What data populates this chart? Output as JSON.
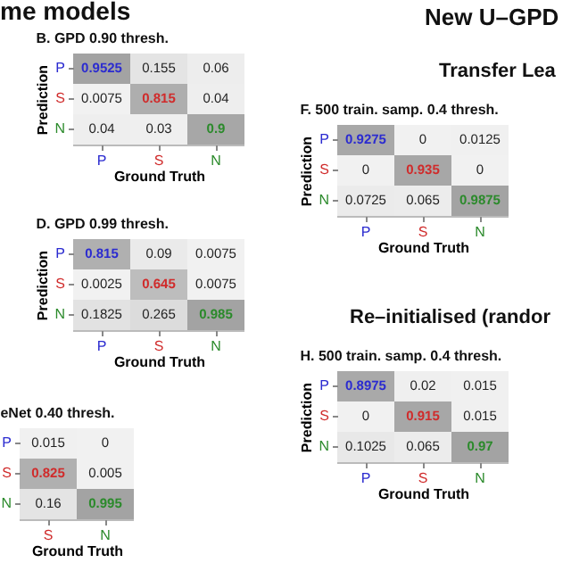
{
  "chart_data": [
    {
      "type": "heatmap",
      "data_labels": true,
      "title": "B. GPD 0.90 thresh.",
      "annotations": [
        "me models"
      ],
      "xlabel": "Ground Truth",
      "ylabel": "Prediction",
      "categories": [
        "P",
        "S",
        "N"
      ],
      "y_categories": [
        "P",
        "S",
        "N"
      ],
      "cells": [
        [
          0.9525,
          0.155,
          0.06
        ],
        [
          0.0075,
          0.815,
          0.04
        ],
        [
          0.04,
          0.03,
          0.9
        ]
      ]
    },
    {
      "type": "heatmap",
      "data_labels": true,
      "title": "D. GPD 0.99 thresh.",
      "xlabel": "Ground Truth",
      "ylabel": "Prediction",
      "categories": [
        "P",
        "S",
        "N"
      ],
      "y_categories": [
        "P",
        "S",
        "N"
      ],
      "cells": [
        [
          0.815,
          0.09,
          0.0075
        ],
        [
          0.0025,
          0.645,
          0.0075
        ],
        [
          0.1825,
          0.265,
          0.985
        ]
      ]
    },
    {
      "type": "heatmap",
      "data_labels": true,
      "title": "eNet 0.40 thresh.",
      "xlabel": "Ground Truth",
      "categories": [
        "S",
        "N"
      ],
      "y_categories": [
        "P",
        "S",
        "N"
      ],
      "cells": [
        [
          0.015,
          0
        ],
        [
          0.825,
          0.005
        ],
        [
          0.16,
          0.995
        ]
      ]
    },
    {
      "type": "heatmap",
      "data_labels": true,
      "title": "F. 500 train. samp. 0.4 thresh.",
      "annotations": [
        "New U–GPD",
        "Transfer Lea"
      ],
      "xlabel": "Ground Truth",
      "ylabel": "Prediction",
      "categories": [
        "P",
        "S",
        "N"
      ],
      "y_categories": [
        "P",
        "S",
        "N"
      ],
      "cells": [
        [
          0.9275,
          0,
          0.0125
        ],
        [
          0,
          0.935,
          0
        ],
        [
          0.0725,
          0.065,
          0.9875
        ]
      ]
    },
    {
      "type": "heatmap",
      "data_labels": true,
      "title": "H. 500 train. samp. 0.4 thresh.",
      "annotations": [
        "Re–initialised (randor"
      ],
      "xlabel": "Ground Truth",
      "ylabel": "Prediction",
      "categories": [
        "P",
        "S",
        "N"
      ],
      "y_categories": [
        "P",
        "S",
        "N"
      ],
      "cells": [
        [
          0.8975,
          0.02,
          0.015
        ],
        [
          0,
          0.915,
          0.015
        ],
        [
          0.1025,
          0.065,
          0.97
        ]
      ]
    }
  ]
}
